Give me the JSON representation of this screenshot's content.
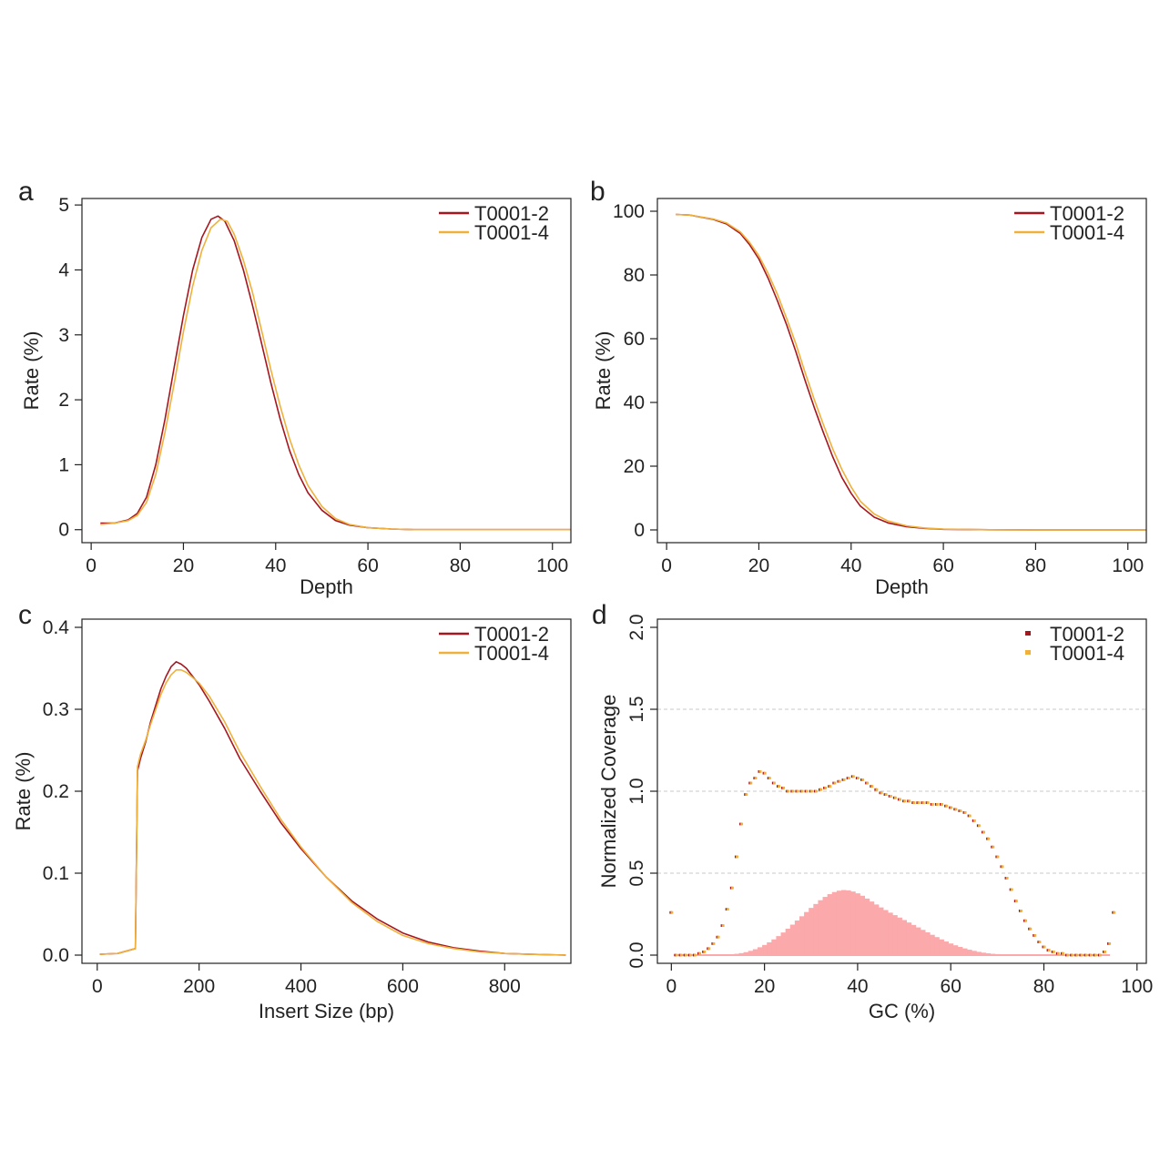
{
  "chart_data": [
    {
      "panel_label": "a",
      "type": "line",
      "xlabel": "Depth",
      "ylabel": "Rate (%)",
      "xlim": [
        -2,
        104
      ],
      "ylim": [
        -0.2,
        5.1
      ],
      "xticks": [
        0,
        20,
        40,
        60,
        80,
        100
      ],
      "yticks": [
        0,
        1,
        2,
        3,
        4,
        5
      ],
      "legend_position": "top-right",
      "grid": false,
      "series": [
        {
          "name": "T0001-2",
          "color": "#a5161f",
          "x": [
            2,
            5,
            8,
            10,
            12,
            14,
            16,
            18,
            20,
            22,
            24,
            26,
            27.5,
            29,
            31,
            33,
            35,
            37,
            39,
            41,
            43,
            45,
            47,
            50,
            53,
            56,
            60,
            65,
            70,
            80,
            90,
            104
          ],
          "y": [
            0.1,
            0.1,
            0.15,
            0.25,
            0.5,
            1.0,
            1.7,
            2.5,
            3.3,
            4.0,
            4.5,
            4.78,
            4.83,
            4.75,
            4.45,
            4.0,
            3.45,
            2.85,
            2.25,
            1.7,
            1.22,
            0.85,
            0.57,
            0.3,
            0.14,
            0.07,
            0.03,
            0.01,
            0.0,
            0.0,
            0.0,
            0.0
          ]
        },
        {
          "name": "T0001-4",
          "color": "#f0b13c",
          "x": [
            2,
            5,
            8,
            10,
            12,
            14,
            16,
            18,
            20,
            22,
            24,
            26,
            28,
            29.5,
            31,
            33,
            35,
            37,
            39,
            41,
            43,
            45,
            47,
            50,
            53,
            56,
            60,
            65,
            70,
            80,
            90,
            104
          ],
          "y": [
            0.08,
            0.1,
            0.14,
            0.22,
            0.42,
            0.85,
            1.5,
            2.25,
            3.05,
            3.75,
            4.3,
            4.65,
            4.78,
            4.75,
            4.55,
            4.15,
            3.65,
            3.05,
            2.45,
            1.9,
            1.4,
            1.0,
            0.68,
            0.36,
            0.17,
            0.08,
            0.03,
            0.01,
            0.0,
            0.0,
            0.0,
            0.0
          ]
        }
      ]
    },
    {
      "panel_label": "b",
      "type": "line",
      "xlabel": "Depth",
      "ylabel": "Rate (%)",
      "xlim": [
        -2,
        104
      ],
      "ylim": [
        -4,
        104
      ],
      "xticks": [
        0,
        20,
        40,
        60,
        80,
        100
      ],
      "yticks": [
        0,
        20,
        40,
        60,
        80,
        100
      ],
      "legend_position": "top-right",
      "grid": false,
      "series": [
        {
          "name": "T0001-2",
          "color": "#a5161f",
          "x": [
            2,
            5,
            10,
            13,
            16,
            18,
            20,
            22,
            24,
            26,
            28,
            30,
            32,
            34,
            36,
            38,
            40,
            42,
            45,
            48,
            52,
            56,
            60,
            70,
            80,
            90,
            104
          ],
          "y": [
            99,
            98.8,
            97.5,
            96,
            93,
            89.5,
            85,
            79,
            72,
            64.5,
            56,
            47,
            38.5,
            30.5,
            23,
            16.5,
            11.5,
            7.5,
            4,
            2.2,
            1.0,
            0.5,
            0.2,
            0.05,
            0,
            0,
            0
          ]
        },
        {
          "name": "T0001-4",
          "color": "#f0b13c",
          "x": [
            2,
            5,
            10,
            13,
            16,
            18,
            20,
            22,
            24,
            26,
            28,
            30,
            32,
            34,
            36,
            38,
            40,
            42,
            45,
            48,
            52,
            56,
            60,
            70,
            80,
            90,
            104
          ],
          "y": [
            99,
            98.8,
            97.6,
            96.3,
            93.5,
            90.2,
            86,
            80.5,
            74,
            66.5,
            58.5,
            49.5,
            41,
            33,
            25.5,
            19,
            13.5,
            9,
            5,
            2.8,
            1.3,
            0.6,
            0.25,
            0.05,
            0,
            0,
            0
          ]
        }
      ]
    },
    {
      "panel_label": "c",
      "type": "line",
      "xlabel": "Insert Size (bp)",
      "ylabel": "Rate (%)",
      "xlim": [
        -30,
        930
      ],
      "ylim": [
        -0.01,
        0.41
      ],
      "xticks": [
        0,
        200,
        400,
        600,
        800
      ],
      "yticks": [
        0.0,
        0.1,
        0.2,
        0.3,
        0.4
      ],
      "ytick_labels": [
        "0.0",
        "0.1",
        "0.2",
        "0.3",
        "0.4"
      ],
      "legend_position": "top-right",
      "grid": false,
      "series": [
        {
          "name": "T0001-2",
          "color": "#a5161f",
          "x": [
            5,
            40,
            75,
            79,
            85,
            95,
            105,
            115,
            125,
            135,
            145,
            155,
            165,
            175,
            185,
            200,
            220,
            250,
            280,
            320,
            360,
            400,
            450,
            500,
            550,
            600,
            650,
            700,
            750,
            800,
            850,
            920
          ],
          "y": [
            0.001,
            0.002,
            0.008,
            0.225,
            0.24,
            0.26,
            0.285,
            0.305,
            0.325,
            0.34,
            0.352,
            0.358,
            0.355,
            0.35,
            0.342,
            0.33,
            0.31,
            0.277,
            0.24,
            0.2,
            0.162,
            0.13,
            0.095,
            0.066,
            0.044,
            0.027,
            0.016,
            0.009,
            0.005,
            0.002,
            0.001,
            0.0
          ]
        },
        {
          "name": "T0001-4",
          "color": "#f0b13c",
          "x": [
            5,
            40,
            75,
            79,
            85,
            95,
            105,
            115,
            125,
            135,
            145,
            155,
            165,
            175,
            185,
            200,
            220,
            250,
            280,
            320,
            360,
            400,
            450,
            500,
            550,
            600,
            650,
            700,
            750,
            800,
            850,
            920
          ],
          "y": [
            0.001,
            0.002,
            0.008,
            0.23,
            0.245,
            0.262,
            0.282,
            0.3,
            0.318,
            0.332,
            0.342,
            0.348,
            0.348,
            0.345,
            0.34,
            0.332,
            0.316,
            0.285,
            0.248,
            0.206,
            0.166,
            0.132,
            0.095,
            0.064,
            0.041,
            0.024,
            0.014,
            0.008,
            0.004,
            0.002,
            0.001,
            0.0
          ]
        }
      ]
    },
    {
      "panel_label": "d",
      "type": "scatter",
      "xlabel": "GC (%)",
      "ylabel": "Normalized Coverage",
      "xlim": [
        -3,
        102
      ],
      "ylim": [
        -0.05,
        2.05
      ],
      "xticks": [
        0,
        20,
        40,
        60,
        80,
        100
      ],
      "yticks": [
        0.0,
        0.5,
        1.0,
        1.5,
        2.0
      ],
      "ytick_labels": [
        "0.0",
        "0.5",
        "1.0",
        "1.5",
        "2.0"
      ],
      "ytick_rotated": true,
      "gridlines_y": [
        0.5,
        1.0,
        1.5
      ],
      "legend_position": "top-right",
      "series": [
        {
          "name": "T0001-2",
          "color": "#a5161f",
          "x": [
            0,
            1,
            2,
            3,
            4,
            5,
            6,
            7,
            8,
            9,
            10,
            11,
            12,
            13,
            14,
            15,
            16,
            17,
            18,
            19,
            20,
            21,
            22,
            23,
            24,
            25,
            26,
            27,
            28,
            29,
            30,
            31,
            32,
            33,
            34,
            35,
            36,
            37,
            38,
            39,
            40,
            41,
            42,
            43,
            44,
            45,
            46,
            47,
            48,
            49,
            50,
            51,
            52,
            53,
            54,
            55,
            56,
            57,
            58,
            59,
            60,
            61,
            62,
            63,
            64,
            65,
            66,
            67,
            68,
            69,
            70,
            71,
            72,
            73,
            74,
            75,
            76,
            77,
            78,
            79,
            80,
            81,
            82,
            83,
            84,
            85,
            86,
            87,
            88,
            89,
            90,
            91,
            92,
            93,
            94,
            95
          ],
          "y": [
            0.26,
            0.0,
            0.0,
            0.0,
            0.0,
            0.0,
            0.01,
            0.02,
            0.04,
            0.07,
            0.11,
            0.18,
            0.28,
            0.41,
            0.6,
            0.8,
            0.98,
            1.05,
            1.08,
            1.12,
            1.11,
            1.08,
            1.05,
            1.03,
            1.02,
            1.0,
            1.0,
            1.0,
            1.0,
            1.0,
            1.0,
            1.0,
            1.01,
            1.02,
            1.03,
            1.05,
            1.06,
            1.07,
            1.08,
            1.09,
            1.08,
            1.07,
            1.05,
            1.03,
            1.01,
            0.99,
            0.98,
            0.97,
            0.96,
            0.95,
            0.94,
            0.94,
            0.93,
            0.93,
            0.93,
            0.93,
            0.92,
            0.92,
            0.92,
            0.91,
            0.9,
            0.89,
            0.88,
            0.87,
            0.85,
            0.82,
            0.79,
            0.75,
            0.71,
            0.66,
            0.6,
            0.54,
            0.47,
            0.4,
            0.33,
            0.27,
            0.21,
            0.16,
            0.12,
            0.08,
            0.05,
            0.03,
            0.02,
            0.01,
            0.01,
            0.0,
            0.0,
            0.0,
            0.0,
            0.0,
            0.0,
            0.0,
            0.0,
            0.02,
            0.07,
            0.26
          ]
        },
        {
          "name": "T0001-4",
          "color": "#f0b13c",
          "x": [
            0,
            1,
            2,
            3,
            4,
            5,
            6,
            7,
            8,
            9,
            10,
            11,
            12,
            13,
            14,
            15,
            16,
            17,
            18,
            19,
            20,
            21,
            22,
            23,
            24,
            25,
            26,
            27,
            28,
            29,
            30,
            31,
            32,
            33,
            34,
            35,
            36,
            37,
            38,
            39,
            40,
            41,
            42,
            43,
            44,
            45,
            46,
            47,
            48,
            49,
            50,
            51,
            52,
            53,
            54,
            55,
            56,
            57,
            58,
            59,
            60,
            61,
            62,
            63,
            64,
            65,
            66,
            67,
            68,
            69,
            70,
            71,
            72,
            73,
            74,
            75,
            76,
            77,
            78,
            79,
            80,
            81,
            82,
            83,
            84,
            85,
            86,
            87,
            88,
            89,
            90,
            91,
            92,
            93,
            94,
            95
          ],
          "y": [
            0.26,
            0.0,
            0.0,
            0.0,
            0.0,
            0.0,
            0.01,
            0.02,
            0.04,
            0.07,
            0.11,
            0.18,
            0.28,
            0.41,
            0.6,
            0.8,
            0.98,
            1.05,
            1.08,
            1.12,
            1.11,
            1.08,
            1.05,
            1.03,
            1.02,
            1.0,
            1.0,
            1.0,
            1.0,
            1.0,
            1.0,
            1.0,
            1.01,
            1.02,
            1.03,
            1.05,
            1.06,
            1.07,
            1.08,
            1.09,
            1.08,
            1.07,
            1.05,
            1.03,
            1.01,
            0.99,
            0.98,
            0.97,
            0.96,
            0.95,
            0.94,
            0.94,
            0.93,
            0.93,
            0.93,
            0.93,
            0.92,
            0.92,
            0.92,
            0.91,
            0.9,
            0.89,
            0.88,
            0.87,
            0.85,
            0.82,
            0.79,
            0.75,
            0.71,
            0.66,
            0.6,
            0.54,
            0.47,
            0.4,
            0.33,
            0.27,
            0.21,
            0.16,
            0.12,
            0.08,
            0.05,
            0.03,
            0.02,
            0.01,
            0.01,
            0.0,
            0.0,
            0.0,
            0.0,
            0.0,
            0.0,
            0.0,
            0.0,
            0.02,
            0.07,
            0.26
          ]
        }
      ],
      "histogram": {
        "color": "#fba9ab",
        "x": [
          0,
          1,
          2,
          3,
          4,
          5,
          6,
          7,
          8,
          9,
          10,
          11,
          12,
          13,
          14,
          15,
          16,
          17,
          18,
          19,
          20,
          21,
          22,
          23,
          24,
          25,
          26,
          27,
          28,
          29,
          30,
          31,
          32,
          33,
          34,
          35,
          36,
          37,
          38,
          39,
          40,
          41,
          42,
          43,
          44,
          45,
          46,
          47,
          48,
          49,
          50,
          51,
          52,
          53,
          54,
          55,
          56,
          57,
          58,
          59,
          60,
          61,
          62,
          63,
          64,
          65,
          66,
          67,
          68,
          69,
          70,
          71,
          72,
          73,
          74,
          75,
          76,
          77,
          78,
          79,
          80,
          81,
          82,
          83,
          84,
          85,
          86,
          87,
          88,
          89,
          90,
          91,
          92,
          93,
          94,
          95
        ],
        "y": [
          0,
          0,
          0,
          0,
          0,
          0,
          0,
          0,
          0,
          0,
          0.001,
          0.002,
          0.003,
          0.005,
          0.008,
          0.012,
          0.018,
          0.026,
          0.036,
          0.048,
          0.062,
          0.078,
          0.096,
          0.116,
          0.138,
          0.161,
          0.186,
          0.211,
          0.237,
          0.263,
          0.288,
          0.312,
          0.335,
          0.355,
          0.372,
          0.385,
          0.393,
          0.397,
          0.395,
          0.388,
          0.377,
          0.362,
          0.345,
          0.327,
          0.309,
          0.291,
          0.275,
          0.259,
          0.244,
          0.229,
          0.214,
          0.199,
          0.184,
          0.169,
          0.154,
          0.139,
          0.124,
          0.11,
          0.096,
          0.083,
          0.071,
          0.06,
          0.05,
          0.041,
          0.033,
          0.026,
          0.02,
          0.015,
          0.011,
          0.008,
          0.006,
          0.004,
          0.003,
          0.002,
          0.001,
          0.001,
          0,
          0,
          0,
          0,
          0,
          0,
          0,
          0,
          0,
          0,
          0,
          0,
          0,
          0,
          0,
          0,
          0,
          0,
          0,
          0
        ]
      }
    }
  ]
}
